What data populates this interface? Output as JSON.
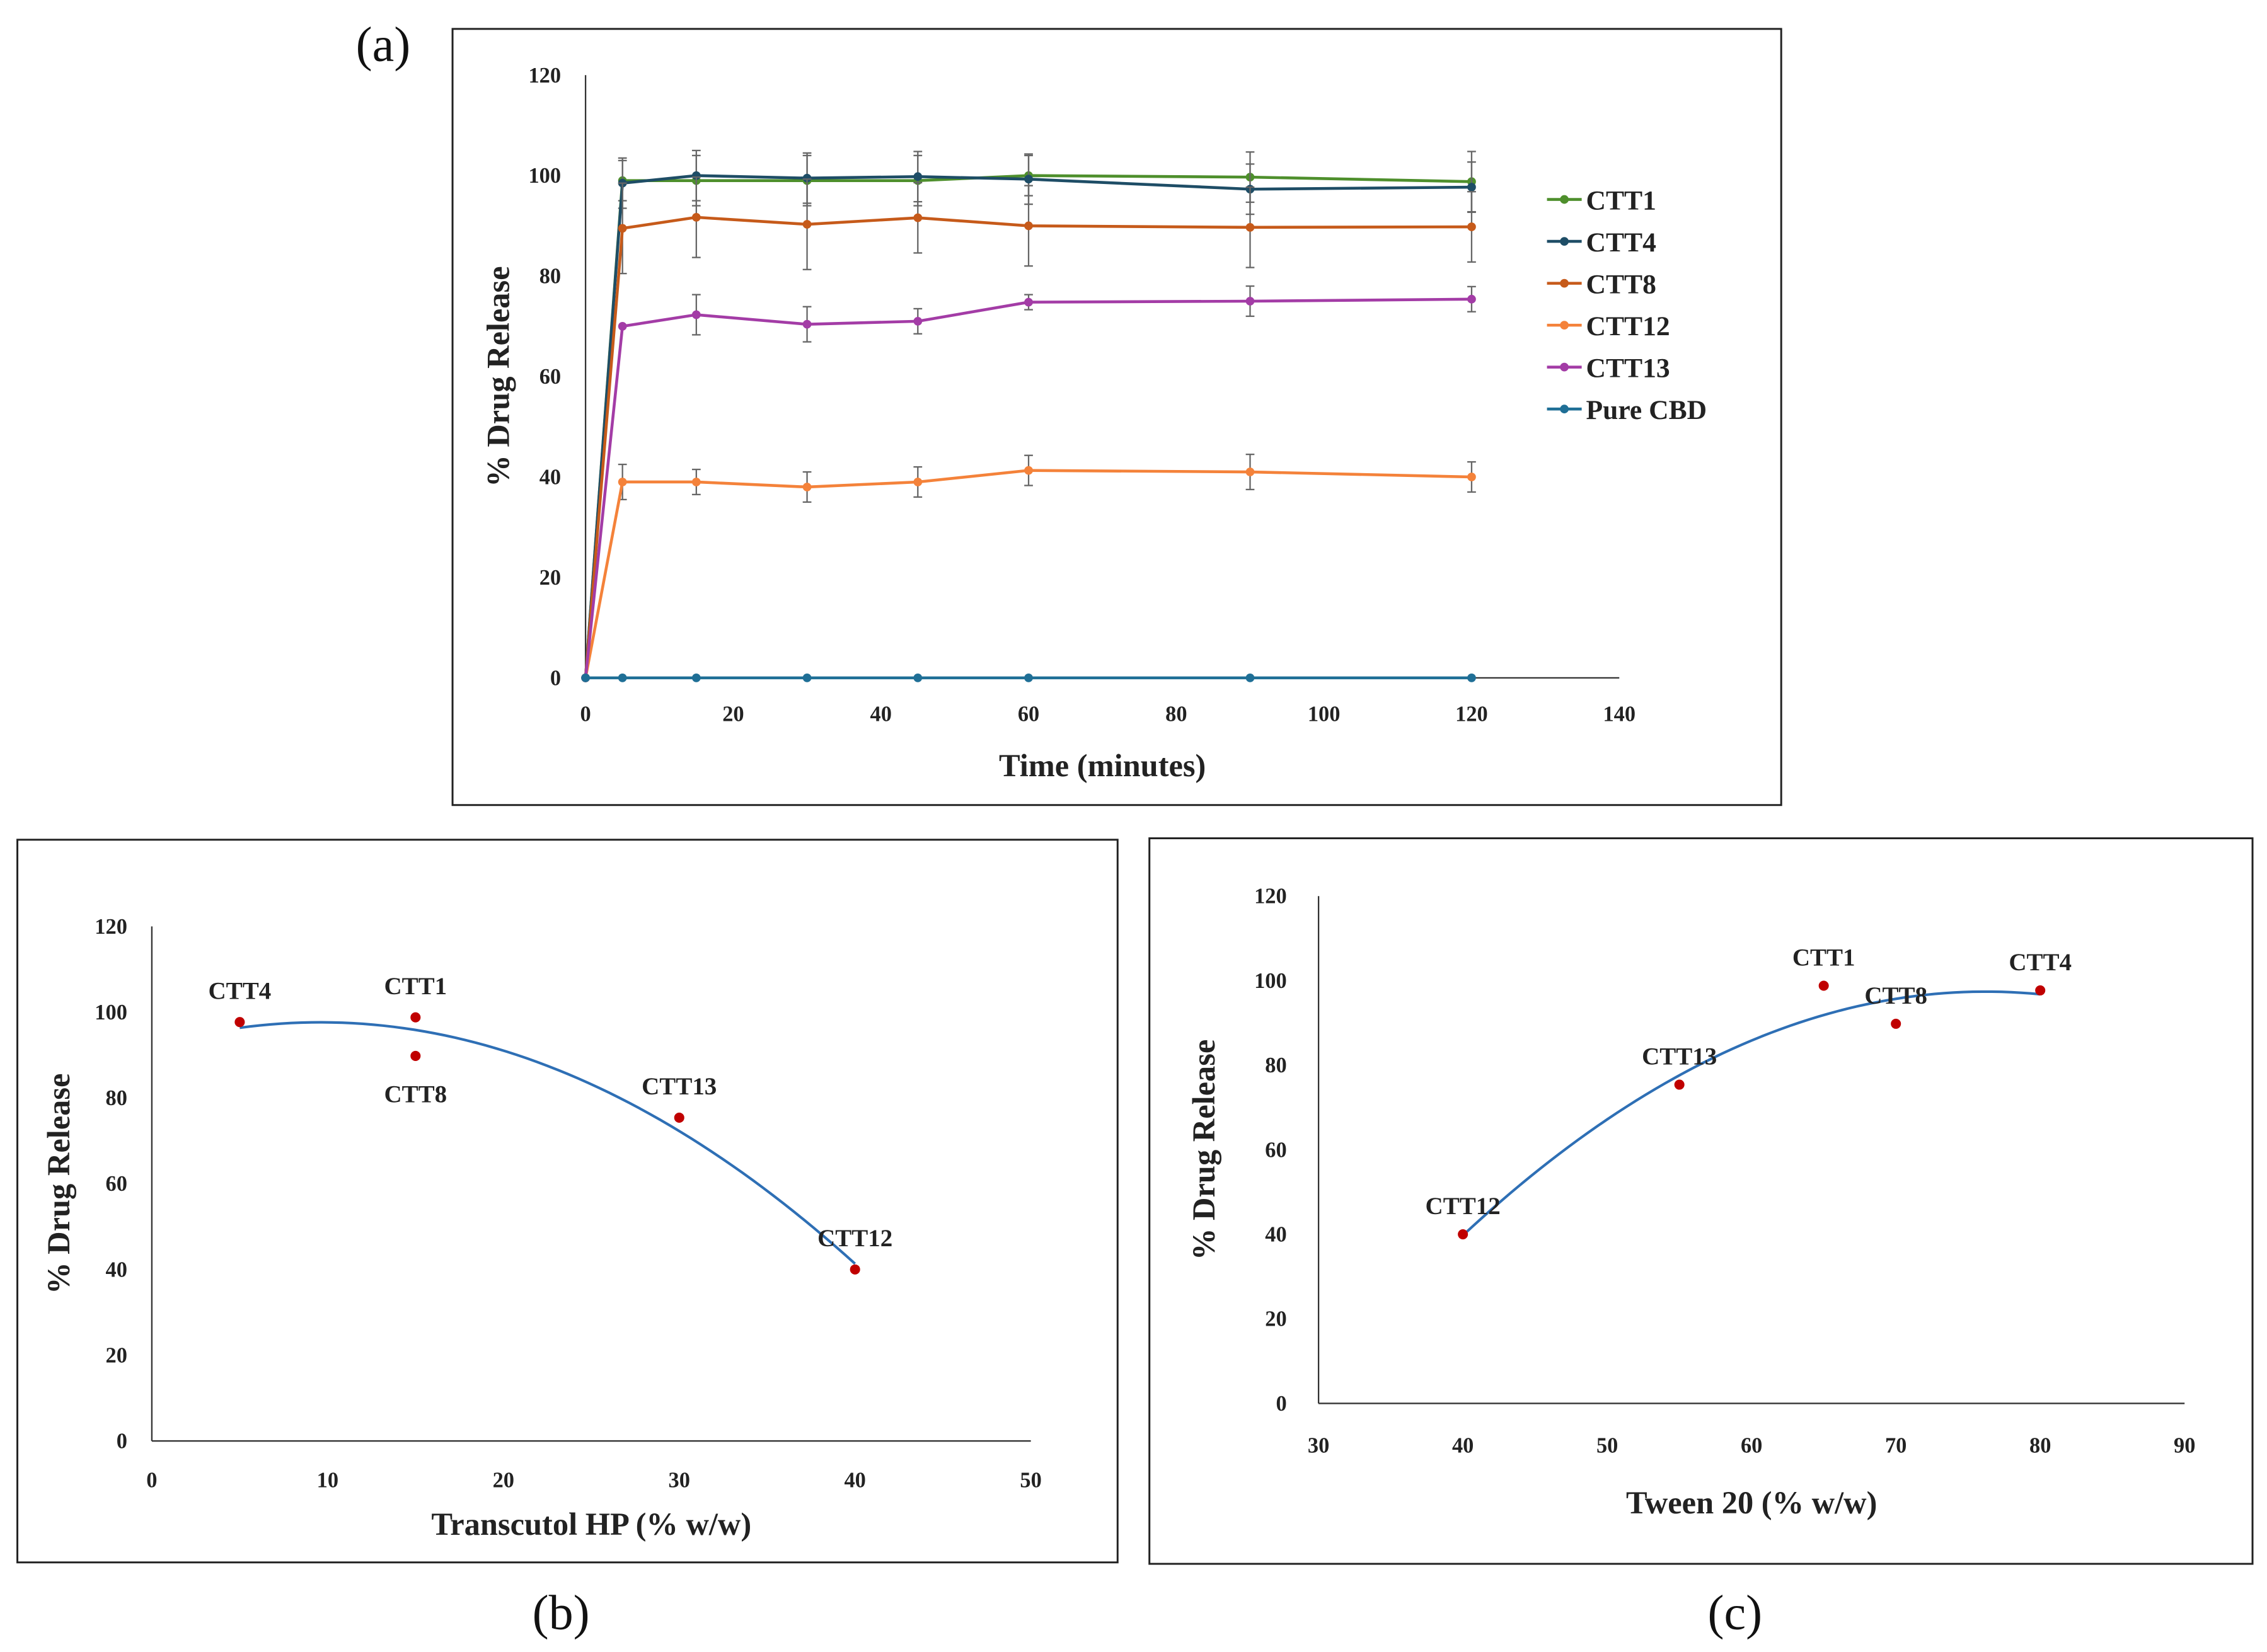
{
  "chart_data": [
    {
      "panel_label": "(a)",
      "type": "line",
      "xlabel": "Time (minutes)",
      "ylabel": "% Drug  Release",
      "xlim": [
        0,
        140
      ],
      "ylim": [
        0,
        120
      ],
      "xticks": [
        0,
        20,
        40,
        60,
        80,
        100,
        120,
        140
      ],
      "yticks": [
        0,
        20,
        40,
        60,
        80,
        100,
        120
      ],
      "legend_position": "right",
      "x": [
        0,
        5,
        15,
        30,
        45,
        60,
        90,
        120
      ],
      "series": [
        {
          "name": "CTT1",
          "color": "#4e8f2c",
          "values": [
            0,
            99,
            99,
            99,
            99,
            100,
            99.7,
            98.8
          ],
          "errors": [
            0,
            4,
            5,
            5,
            5,
            4,
            5,
            6
          ]
        },
        {
          "name": "CTT4",
          "color": "#1e4d66",
          "values": [
            0,
            98.5,
            100,
            99.5,
            99.8,
            99.3,
            97.3,
            97.7
          ],
          "errors": [
            0,
            5,
            5,
            5,
            5,
            5,
            5,
            5
          ]
        },
        {
          "name": "CTT8",
          "color": "#c65a1a",
          "values": [
            0,
            89.5,
            91.7,
            90.3,
            91.6,
            90,
            89.7,
            89.8
          ],
          "errors": [
            0,
            9,
            8,
            9,
            7,
            8,
            8,
            7
          ]
        },
        {
          "name": "CTT12",
          "color": "#f4823a",
          "values": [
            0,
            39,
            39,
            38,
            39,
            41.3,
            41,
            40
          ],
          "errors": [
            0,
            3.5,
            2.5,
            3,
            3,
            3,
            3.5,
            3
          ]
        },
        {
          "name": "CTT13",
          "color": "#a33ca6",
          "values": [
            0,
            70,
            72.3,
            70.4,
            71,
            74.8,
            75,
            75.4
          ],
          "errors": [
            0,
            0,
            4,
            3.5,
            2.5,
            1.5,
            3,
            2.5
          ]
        },
        {
          "name": "Pure CBD",
          "color": "#1f6f96",
          "values": [
            0,
            0,
            0,
            0,
            0,
            0,
            0,
            0
          ],
          "errors": [
            0,
            0,
            0,
            0,
            0,
            0,
            0,
            0
          ]
        }
      ]
    },
    {
      "panel_label": "(b)",
      "type": "scatter",
      "xlabel": "Transcutol HP (% w/w)",
      "ylabel": "% Drug Release",
      "xlim": [
        0,
        50
      ],
      "ylim": [
        0,
        120
      ],
      "xticks": [
        0,
        10,
        20,
        30,
        40,
        50
      ],
      "yticks": [
        0,
        20,
        40,
        60,
        80,
        100,
        120
      ],
      "trendline": "polynomial order 2",
      "point_color": "#c00000",
      "trend_color": "#2e6fb5",
      "points": [
        {
          "label": "CTT4",
          "x": 5,
          "y": 97.7
        },
        {
          "label": "CTT1",
          "x": 15,
          "y": 98.8
        },
        {
          "label": "CTT8",
          "x": 15,
          "y": 89.8
        },
        {
          "label": "CTT13",
          "x": 30,
          "y": 75.4
        },
        {
          "label": "CTT12",
          "x": 40,
          "y": 40
        }
      ]
    },
    {
      "panel_label": "(c)",
      "type": "scatter",
      "xlabel": "Tween 20 (% w/w)",
      "ylabel": "% Drug Release",
      "xlim": [
        30,
        90
      ],
      "ylim": [
        0,
        120
      ],
      "xticks": [
        30,
        40,
        50,
        60,
        70,
        80,
        90
      ],
      "yticks": [
        0,
        20,
        40,
        60,
        80,
        100,
        120
      ],
      "trendline": "polynomial order 2",
      "point_color": "#c00000",
      "trend_color": "#2e6fb5",
      "points": [
        {
          "label": "CTT12",
          "x": 40,
          "y": 40
        },
        {
          "label": "CTT13",
          "x": 55,
          "y": 75.4
        },
        {
          "label": "CTT1",
          "x": 65,
          "y": 98.8
        },
        {
          "label": "CTT8",
          "x": 70,
          "y": 89.8
        },
        {
          "label": "CTT4",
          "x": 80,
          "y": 97.7
        }
      ]
    }
  ]
}
